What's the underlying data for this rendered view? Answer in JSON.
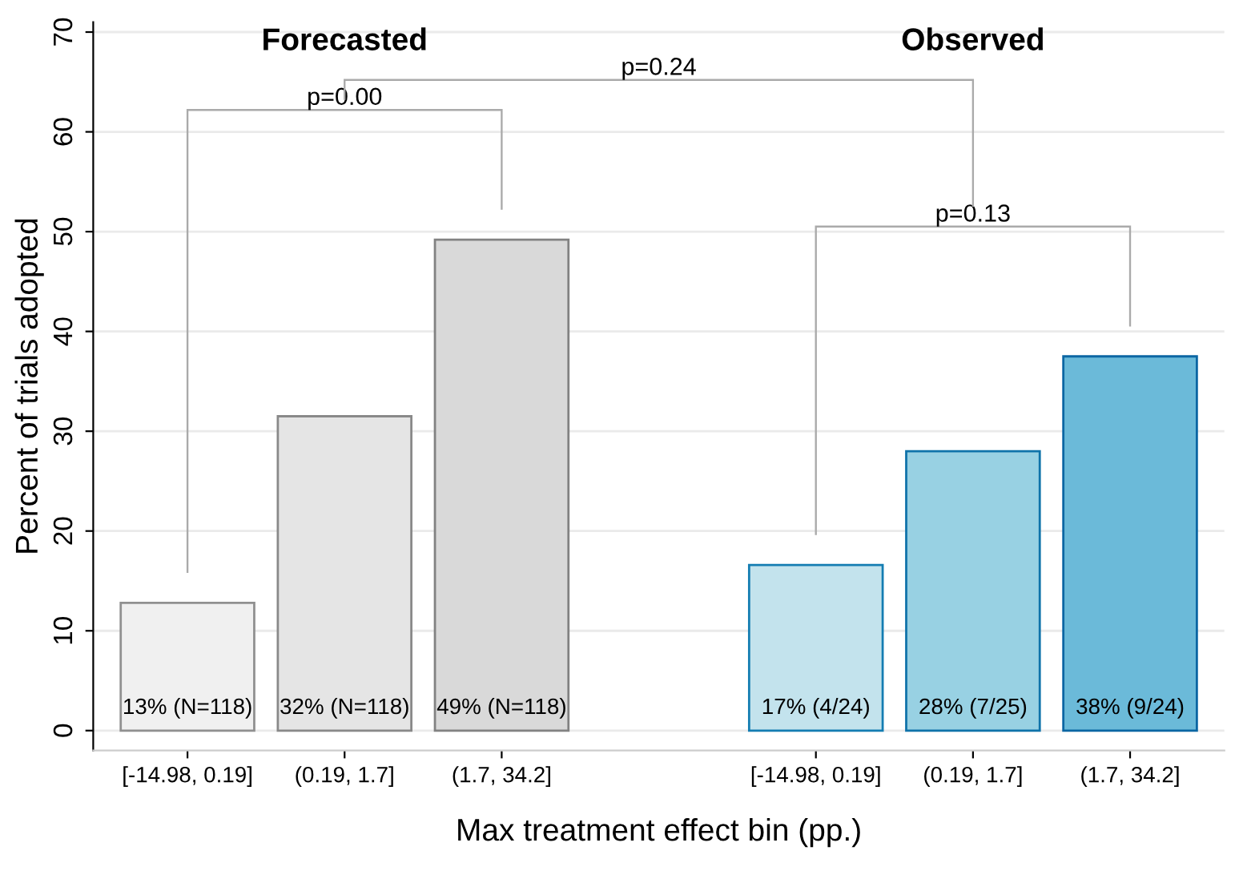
{
  "chart_data": {
    "type": "bar",
    "categories": [
      "[-14.98, 0.19]",
      "(0.19, 1.7]",
      "(1.7, 34.2]",
      null,
      "[-14.98, 0.19]",
      "(0.19, 1.7]",
      "(1.7, 34.2]"
    ],
    "values": [
      12.8,
      31.5,
      49.2,
      null,
      16.6,
      28.0,
      37.5
    ],
    "colors": [
      "#f0f0f0",
      "#e5e5e5",
      "#d9d9d9",
      null,
      "#c3e3ed",
      "#98d1e3",
      "#6bbad9"
    ],
    "value_labels": [
      "13% (N=118)",
      "32% (N=118)",
      "49% (N=118)",
      null,
      "17% (4/24)",
      "28% (7/25)",
      "38% (9/24)"
    ],
    "xlabel": "Max treatment effect bin (pp.)",
    "ylabel": "Percent of trials adopted",
    "ylim": [
      -2,
      71
    ],
    "yticks": [
      0,
      10,
      20,
      30,
      40,
      50,
      60,
      70
    ],
    "grid": "y",
    "annotations": [
      "Forecasted",
      "Observed",
      "p=0.00",
      "p=0.13",
      "p=0.24"
    ]
  }
}
